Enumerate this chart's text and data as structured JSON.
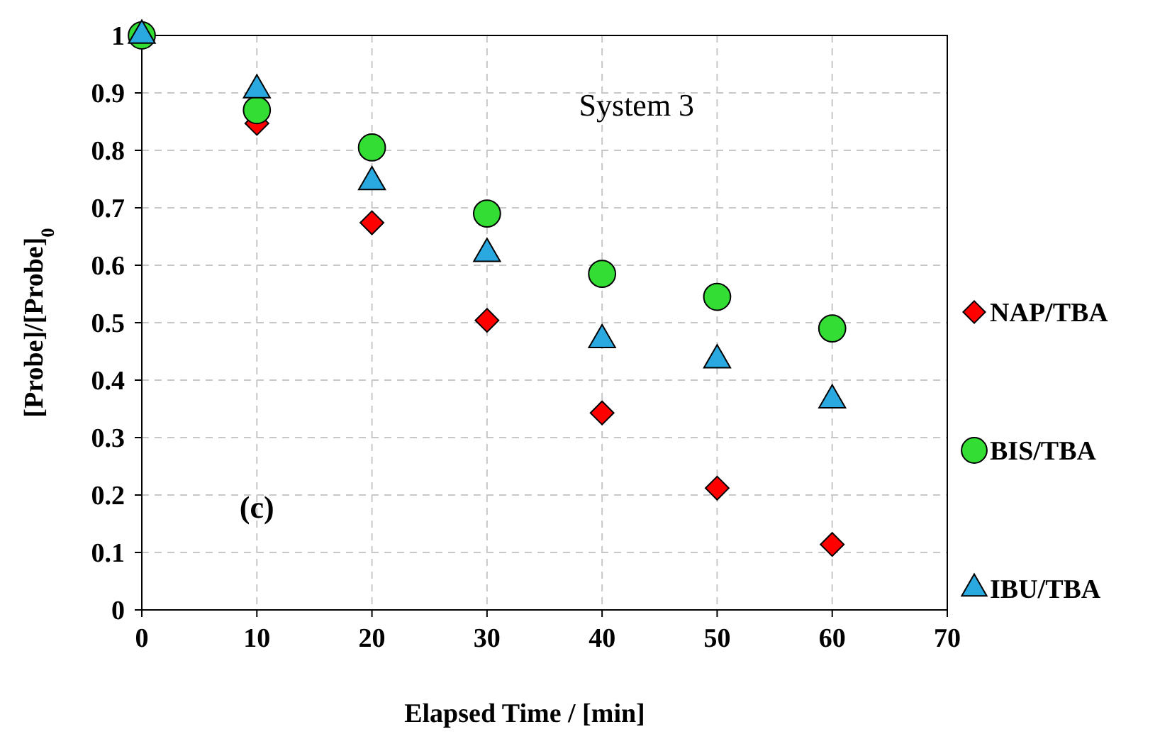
{
  "chart_data": {
    "type": "scatter",
    "xlabel": "Elapsed Time / [min]",
    "ylabel": "[Probe]/[Probe]$_{0}$",
    "x": [
      0,
      10,
      20,
      30,
      40,
      50,
      60
    ],
    "series": [
      {
        "name": "NAP/TBA",
        "color": "#ff0000",
        "marker": "diamond",
        "values": [
          null,
          0.847,
          0.674,
          0.504,
          0.343,
          0.212,
          0.114
        ]
      },
      {
        "name": "BIS/TBA",
        "color": "#33dd33",
        "marker": "circle",
        "values": [
          1,
          0.87,
          0.805,
          0.69,
          0.585,
          0.545,
          0.49
        ]
      },
      {
        "name": "IBU/TBA",
        "color": "#2aa8e0",
        "marker": "triangle",
        "values": [
          1,
          0.905,
          0.745,
          0.62,
          0.47,
          0.435,
          0.365
        ]
      }
    ],
    "xlim": [
      0,
      70
    ],
    "xticks": [
      0,
      10,
      20,
      30,
      40,
      50,
      60,
      70
    ],
    "ylim": [
      0,
      1
    ],
    "yticks": [
      0,
      0.1,
      0.2,
      0.3,
      0.4,
      0.5,
      0.6,
      0.7,
      0.8,
      0.9,
      1
    ],
    "grid": true,
    "legend": "right",
    "annotations": [
      "System 3",
      "(c)"
    ]
  }
}
